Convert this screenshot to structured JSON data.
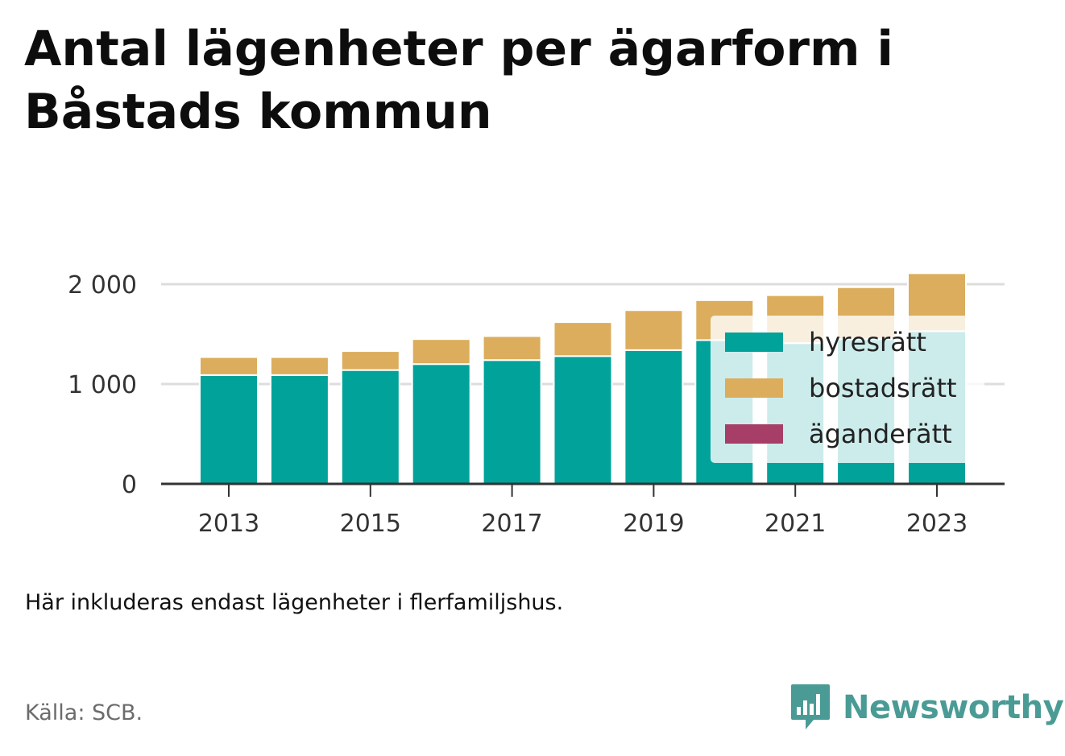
{
  "title": "Antal lägenheter per ägarform i Båstads kommun",
  "note": "Här inkluderas endast lägenheter i flerfamiljshus.",
  "source": "Källa: SCB.",
  "brand": "Newsworthy",
  "colors": {
    "hyresratt": "#00a29a",
    "bostadsratt": "#dbad5c",
    "aganderatt": "#a63e68",
    "grid": "#dddddd",
    "axis": "#333333",
    "brand": "#4a9b95"
  },
  "chart_data": {
    "type": "bar",
    "stacked": true,
    "categories": [
      "2013",
      "2014",
      "2015",
      "2016",
      "2017",
      "2018",
      "2019",
      "2020",
      "2021",
      "2022",
      "2023"
    ],
    "x_tick_labels": [
      "2013",
      "2015",
      "2017",
      "2019",
      "2021",
      "2023"
    ],
    "series": [
      {
        "name": "hyresrätt",
        "values": [
          1090,
          1090,
          1140,
          1200,
          1240,
          1280,
          1340,
          1440,
          1410,
          1450,
          1530
        ]
      },
      {
        "name": "bostadsrätt",
        "values": [
          180,
          180,
          190,
          250,
          240,
          340,
          400,
          400,
          480,
          520,
          580
        ]
      },
      {
        "name": "äganderätt",
        "values": [
          0,
          0,
          0,
          0,
          0,
          0,
          0,
          0,
          0,
          0,
          0
        ]
      }
    ],
    "y_ticks": [
      0,
      1000,
      2000
    ],
    "y_tick_labels": [
      "0",
      "1 000",
      "2 000"
    ],
    "ylim": [
      0,
      2150
    ],
    "grid": true,
    "legend": "inside-right"
  }
}
